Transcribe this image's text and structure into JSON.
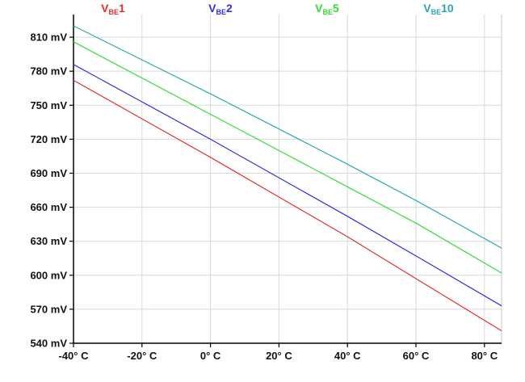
{
  "chart_data": {
    "type": "line",
    "title": "",
    "xlabel": "",
    "ylabel": "",
    "x_unit": "°C",
    "y_unit": "mV",
    "xlim": [
      -40,
      85
    ],
    "ylim": [
      540,
      830
    ],
    "x_ticks": [
      -40,
      -20,
      0,
      20,
      40,
      60,
      80
    ],
    "y_ticks": [
      540,
      570,
      600,
      630,
      660,
      690,
      720,
      750,
      780,
      810
    ],
    "x_tick_labels": [
      "-40° C",
      "-20° C",
      "0° C",
      "20° C",
      "40° C",
      "60° C",
      "80° C"
    ],
    "y_tick_labels": [
      "540 mV",
      "570 mV",
      "600 mV",
      "630 mV",
      "660 mV",
      "690 mV",
      "720 mV",
      "750 mV",
      "780 mV",
      "810 mV"
    ],
    "grid": true,
    "legend_position": "top",
    "series": [
      {
        "name": "VBE1",
        "label_main": "V",
        "label_sub": "BE",
        "label_suffix": "1",
        "color": "#e03030",
        "x": [
          -40,
          -20,
          0,
          20,
          40,
          60,
          85
        ],
        "values": [
          772,
          738,
          704,
          669,
          634,
          597,
          551
        ]
      },
      {
        "name": "VBE2",
        "label_main": "V",
        "label_sub": "BE",
        "label_suffix": "2",
        "color": "#3030e0",
        "x": [
          -40,
          -20,
          0,
          20,
          40,
          60,
          85
        ],
        "values": [
          786,
          753,
          720,
          686,
          652,
          617,
          573
        ]
      },
      {
        "name": "VBE5",
        "label_main": "V",
        "label_sub": "BE",
        "label_suffix": "5",
        "color": "#33dd33",
        "x": [
          -40,
          -20,
          0,
          20,
          40,
          60,
          85
        ],
        "values": [
          806,
          774,
          742,
          710,
          678,
          646,
          602
        ]
      },
      {
        "name": "VBE10",
        "label_main": "V",
        "label_sub": "BE",
        "label_suffix": "10",
        "color": "#2aa8b0",
        "x": [
          -40,
          -20,
          0,
          20,
          40,
          60,
          85
        ],
        "values": [
          820,
          790,
          760,
          729,
          698,
          666,
          624
        ]
      }
    ]
  }
}
